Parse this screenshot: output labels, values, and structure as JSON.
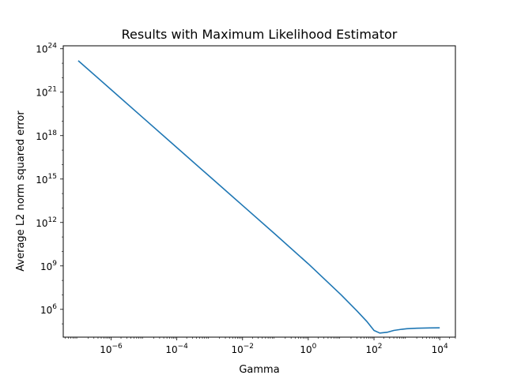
{
  "chart_data": {
    "type": "line",
    "title": "Results with Maximum Likelihood Estimator",
    "xlabel": "Gamma",
    "ylabel": "Average L2 norm squared error",
    "xscale": "log",
    "yscale": "log",
    "xlim": [
      3.5e-08,
      30000.0
    ],
    "ylim": [
      12000.0,
      1.6e+24
    ],
    "xticks": [
      {
        "base": "10",
        "exp": "−6",
        "value": 1e-06
      },
      {
        "base": "10",
        "exp": "−4",
        "value": 0.0001
      },
      {
        "base": "10",
        "exp": "−2",
        "value": 0.01
      },
      {
        "base": "10",
        "exp": "0",
        "value": 1
      },
      {
        "base": "10",
        "exp": "2",
        "value": 100
      },
      {
        "base": "10",
        "exp": "4",
        "value": 10000
      }
    ],
    "yticks": [
      {
        "base": "10",
        "exp": "6",
        "value": 1000000.0
      },
      {
        "base": "10",
        "exp": "9",
        "value": 1000000000.0
      },
      {
        "base": "10",
        "exp": "12",
        "value": 1000000000000.0
      },
      {
        "base": "10",
        "exp": "15",
        "value": 1000000000000000.0
      },
      {
        "base": "10",
        "exp": "18",
        "value": 1e+18
      },
      {
        "base": "10",
        "exp": "21",
        "value": 1e+21
      },
      {
        "base": "10",
        "exp": "24",
        "value": 1e+24
      }
    ],
    "grid": false,
    "color": "#1f77b4",
    "series": [
      {
        "x": [
          1e-07,
          1e-06,
          1e-05,
          0.0001,
          0.001,
          0.01,
          0.1,
          1,
          10,
          30,
          60,
          100,
          150,
          250,
          400,
          700,
          1000,
          2000,
          5000,
          10000
        ],
        "y": [
          1.5e+23,
          1.5e+21,
          1.5e+19,
          1.5e+17,
          1500000000000000.0,
          15000000000000.0,
          150000000000.0,
          1400000000.0,
          10000000.0,
          800000.0,
          150000.0,
          35000.0,
          23000.0,
          26000.0,
          35000.0,
          42000.0,
          46000.0,
          50000.0,
          52000.0,
          53000.0
        ]
      }
    ]
  }
}
